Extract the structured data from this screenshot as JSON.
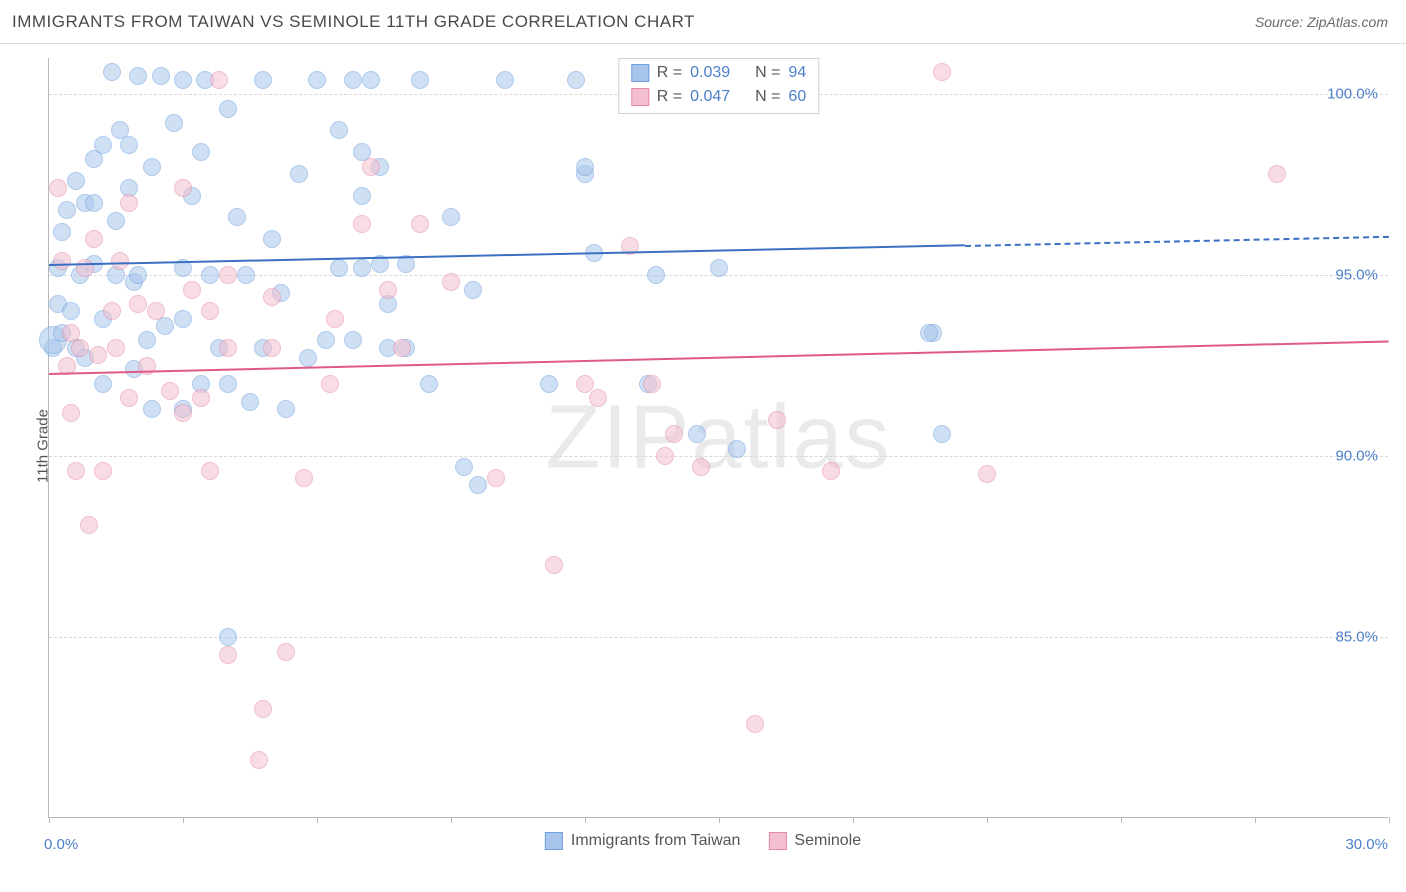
{
  "title": "IMMIGRANTS FROM TAIWAN VS SEMINOLE 11TH GRADE CORRELATION CHART",
  "source": "Source: ZipAtlas.com",
  "y_axis_label": "11th Grade",
  "watermark": "ZIPatlas",
  "chart": {
    "type": "scatter",
    "xlim": [
      0,
      30
    ],
    "ylim": [
      80,
      101
    ],
    "y_ticks": [
      85.0,
      90.0,
      95.0,
      100.0
    ],
    "y_tick_labels": [
      "85.0%",
      "90.0%",
      "95.0%",
      "100.0%"
    ],
    "x_ticks": [
      0,
      3,
      6,
      9,
      12,
      15,
      18,
      21,
      24,
      27,
      30
    ],
    "x_tick_labels_shown": {
      "0": "0.0%",
      "30": "30.0%"
    },
    "grid_color": "#d8d8d8",
    "axis_color": "#b8b8b8",
    "background_color": "#ffffff",
    "marker_radius": 9,
    "marker_radius_large": 14,
    "series": [
      {
        "name": "Immigrants from Taiwan",
        "fill": "#a8c5ec",
        "stroke": "#6f9fdc",
        "fill_opacity": 0.55,
        "trend": {
          "color": "#3b6fc4",
          "y_start": 95.3,
          "y_end": 96.1,
          "solid_until_x": 20.5,
          "width": 2
        },
        "points": [
          [
            0.1,
            93.0
          ],
          [
            0.1,
            93.2,
            14
          ],
          [
            0.2,
            94.2
          ],
          [
            0.2,
            95.2
          ],
          [
            0.3,
            96.2
          ],
          [
            0.3,
            93.4
          ],
          [
            0.4,
            96.8
          ],
          [
            0.5,
            94.0
          ],
          [
            0.6,
            97.6
          ],
          [
            0.6,
            93.0
          ],
          [
            0.7,
            95.0
          ],
          [
            0.8,
            97.0
          ],
          [
            0.8,
            92.7
          ],
          [
            1.0,
            98.2
          ],
          [
            1.0,
            97.0
          ],
          [
            1.0,
            95.3
          ],
          [
            1.2,
            98.6
          ],
          [
            1.2,
            93.8
          ],
          [
            1.2,
            92.0
          ],
          [
            1.4,
            100.6
          ],
          [
            1.5,
            96.5
          ],
          [
            1.5,
            95.0
          ],
          [
            1.6,
            99.0
          ],
          [
            1.8,
            97.4
          ],
          [
            1.8,
            98.6
          ],
          [
            1.9,
            94.8
          ],
          [
            1.9,
            92.4
          ],
          [
            2.0,
            100.5
          ],
          [
            2.0,
            95.0
          ],
          [
            2.2,
            93.2
          ],
          [
            2.3,
            98.0
          ],
          [
            2.3,
            91.3
          ],
          [
            2.5,
            100.5
          ],
          [
            2.6,
            93.6
          ],
          [
            2.8,
            99.2
          ],
          [
            3.0,
            100.4
          ],
          [
            3.0,
            95.2
          ],
          [
            3.0,
            93.8
          ],
          [
            3.0,
            91.3
          ],
          [
            3.2,
            97.2
          ],
          [
            3.4,
            98.4
          ],
          [
            3.4,
            92.0
          ],
          [
            3.5,
            100.4
          ],
          [
            3.6,
            95.0
          ],
          [
            3.8,
            93.0
          ],
          [
            4.0,
            99.6
          ],
          [
            4.0,
            92.0
          ],
          [
            4.0,
            85.0
          ],
          [
            4.2,
            96.6
          ],
          [
            4.4,
            95.0
          ],
          [
            4.5,
            91.5
          ],
          [
            4.8,
            100.4
          ],
          [
            4.8,
            93.0
          ],
          [
            5.0,
            96.0
          ],
          [
            5.2,
            94.5
          ],
          [
            5.3,
            91.3
          ],
          [
            5.6,
            97.8
          ],
          [
            5.8,
            92.7
          ],
          [
            6.0,
            100.4
          ],
          [
            6.2,
            93.2
          ],
          [
            6.5,
            99.0
          ],
          [
            6.5,
            95.2
          ],
          [
            6.8,
            93.2
          ],
          [
            6.8,
            100.4
          ],
          [
            7.0,
            97.2
          ],
          [
            7.0,
            95.2
          ],
          [
            7.0,
            98.4
          ],
          [
            7.2,
            100.4
          ],
          [
            7.4,
            95.3
          ],
          [
            7.4,
            98.0
          ],
          [
            7.6,
            94.2
          ],
          [
            7.6,
            93.0
          ],
          [
            8.0,
            95.3
          ],
          [
            8.0,
            93.0
          ],
          [
            8.3,
            100.4
          ],
          [
            8.5,
            92.0
          ],
          [
            9.0,
            96.6
          ],
          [
            9.3,
            89.7
          ],
          [
            9.5,
            94.6
          ],
          [
            9.6,
            89.2
          ],
          [
            10.2,
            100.4
          ],
          [
            11.2,
            92.0
          ],
          [
            11.8,
            100.4
          ],
          [
            12.0,
            97.8
          ],
          [
            12.0,
            98.0
          ],
          [
            12.2,
            95.6
          ],
          [
            13.4,
            92.0
          ],
          [
            13.6,
            95.0
          ],
          [
            14.5,
            90.6
          ],
          [
            15.0,
            95.2
          ],
          [
            15.4,
            90.2
          ],
          [
            19.8,
            93.4
          ],
          [
            19.7,
            93.4
          ],
          [
            20.0,
            90.6
          ]
        ]
      },
      {
        "name": "Seminole",
        "fill": "#f4c0cf",
        "stroke": "#e58aa5",
        "fill_opacity": 0.55,
        "trend": {
          "color": "#e05a86",
          "y_start": 92.3,
          "y_end": 93.2,
          "solid_until_x": 30,
          "width": 2
        },
        "points": [
          [
            0.2,
            97.4
          ],
          [
            0.3,
            95.4
          ],
          [
            0.4,
            92.5
          ],
          [
            0.5,
            93.4
          ],
          [
            0.5,
            91.2
          ],
          [
            0.6,
            89.6
          ],
          [
            0.7,
            93.0
          ],
          [
            0.8,
            95.2
          ],
          [
            0.9,
            88.1
          ],
          [
            1.0,
            96.0
          ],
          [
            1.1,
            92.8
          ],
          [
            1.2,
            89.6
          ],
          [
            1.4,
            94.0
          ],
          [
            1.5,
            93.0
          ],
          [
            1.6,
            95.4
          ],
          [
            1.8,
            91.6
          ],
          [
            1.8,
            97.0
          ],
          [
            2.0,
            94.2
          ],
          [
            2.2,
            92.5
          ],
          [
            2.4,
            94.0
          ],
          [
            2.7,
            91.8
          ],
          [
            3.0,
            97.4
          ],
          [
            3.0,
            91.2
          ],
          [
            3.2,
            94.6
          ],
          [
            3.4,
            91.6
          ],
          [
            3.6,
            94.0
          ],
          [
            3.6,
            89.6
          ],
          [
            3.8,
            100.4
          ],
          [
            4.0,
            95.0
          ],
          [
            4.0,
            93.0
          ],
          [
            4.0,
            84.5
          ],
          [
            4.7,
            81.6
          ],
          [
            4.8,
            83.0
          ],
          [
            5.0,
            94.4
          ],
          [
            5.0,
            93.0
          ],
          [
            5.3,
            84.6
          ],
          [
            5.7,
            89.4
          ],
          [
            6.3,
            92.0
          ],
          [
            6.4,
            93.8
          ],
          [
            7.0,
            96.4
          ],
          [
            7.2,
            98.0
          ],
          [
            7.6,
            94.6
          ],
          [
            7.9,
            93.0
          ],
          [
            8.3,
            96.4
          ],
          [
            9.0,
            94.8
          ],
          [
            10.0,
            89.4
          ],
          [
            11.3,
            87.0
          ],
          [
            12.0,
            92.0
          ],
          [
            12.3,
            91.6
          ],
          [
            13.0,
            95.8
          ],
          [
            13.5,
            92.0
          ],
          [
            13.8,
            90.0
          ],
          [
            14.0,
            90.6
          ],
          [
            14.6,
            89.7
          ],
          [
            15.8,
            82.6
          ],
          [
            16.3,
            91.0
          ],
          [
            17.5,
            89.6
          ],
          [
            20.0,
            100.6
          ],
          [
            21.0,
            89.5
          ],
          [
            27.5,
            97.8
          ]
        ]
      }
    ],
    "stats_legend": {
      "rows": [
        {
          "swatch_fill": "#a8c5ec",
          "swatch_stroke": "#6f9fdc",
          "r_label": "R =",
          "r_val": "0.039",
          "n_label": "N =",
          "n_val": "94"
        },
        {
          "swatch_fill": "#f4c0cf",
          "swatch_stroke": "#e58aa5",
          "r_label": "R =",
          "r_val": "0.047",
          "n_label": "N =",
          "n_val": "60"
        }
      ]
    }
  }
}
